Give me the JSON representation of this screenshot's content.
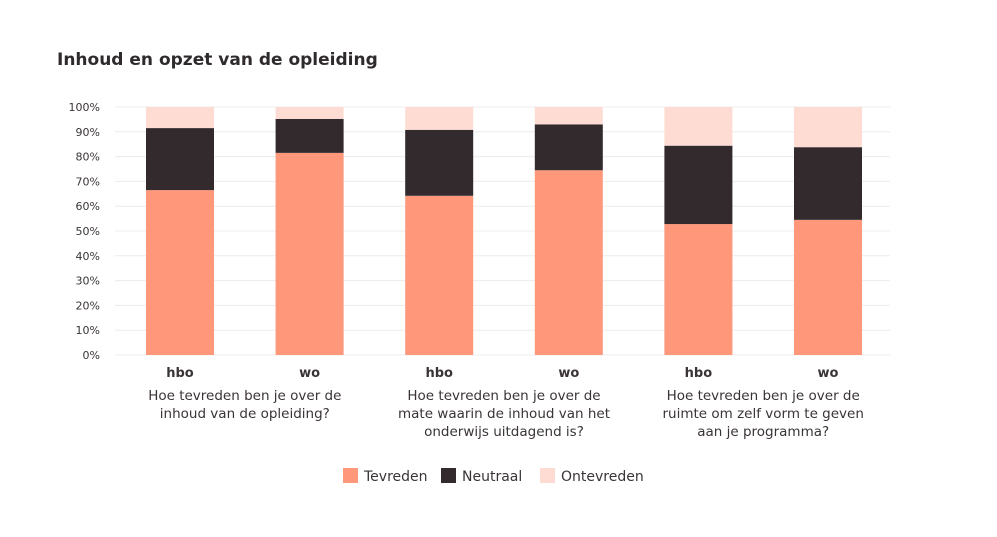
{
  "chart_data": {
    "type": "bar",
    "stacked": true,
    "title": "Inhoud en opzet van de opleiding",
    "y_ticks": [
      "0%",
      "10%",
      "20%",
      "30%",
      "40%",
      "50%",
      "60%",
      "70%",
      "80%",
      "90%",
      "100%"
    ],
    "ylim": [
      0,
      100
    ],
    "grid": true,
    "legend_position": "bottom-center",
    "categories": [
      "hbo",
      "wo",
      "hbo",
      "wo",
      "hbo",
      "wo"
    ],
    "groups": [
      {
        "lines": [
          "Hoe tevreden ben je over de",
          "inhoud van de opleiding?"
        ]
      },
      {
        "lines": [
          "Hoe tevreden ben je over de",
          "mate waarin de inhoud van het",
          "onderwijs uitdagend is?"
        ]
      },
      {
        "lines": [
          "Hoe tevreden ben je over de",
          "ruimte om zelf vorm te geven",
          "aan je programma?"
        ]
      }
    ],
    "series": [
      {
        "name": "Tevreden",
        "color": "#ff977b",
        "values": [
          66.5,
          81.5,
          64.2,
          74.5,
          52.8,
          54.5
        ]
      },
      {
        "name": "Neutraal",
        "color": "#332a2d",
        "values": [
          25,
          13.7,
          26.6,
          18.5,
          31.6,
          29.3
        ]
      },
      {
        "name": "Ontevreden",
        "color": "#ffdcd3",
        "values": [
          8.5,
          4.8,
          9.2,
          7,
          15.6,
          16.2
        ]
      }
    ]
  }
}
